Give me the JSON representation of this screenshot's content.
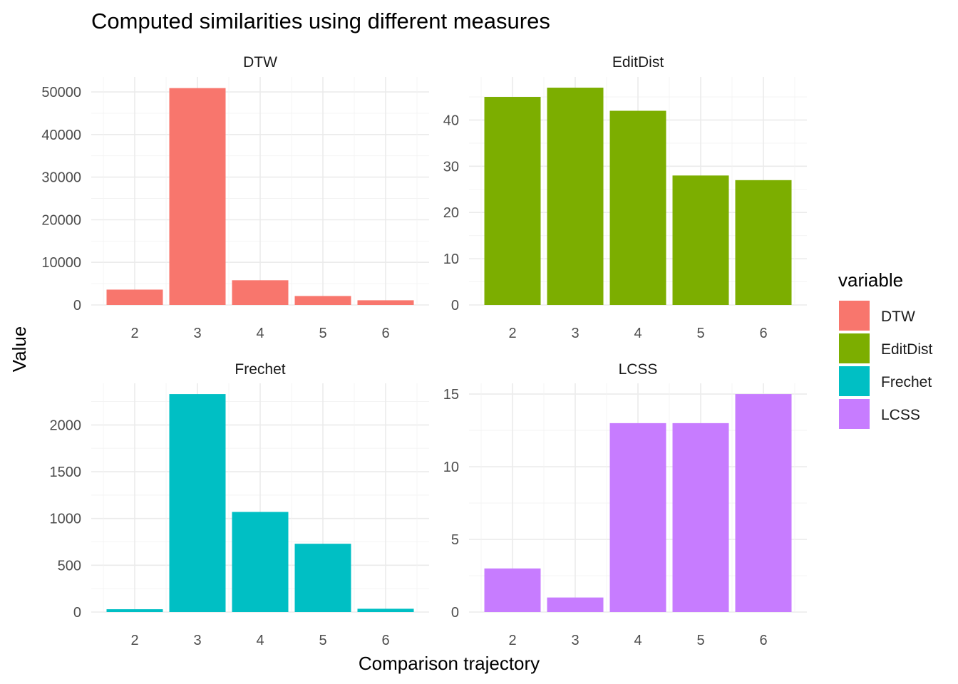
{
  "chart_data": {
    "type": "bar",
    "title": "Computed similarities using different measures",
    "xlabel": "Comparison trajectory",
    "ylabel": "Value",
    "categories": [
      "2",
      "3",
      "4",
      "5",
      "6"
    ],
    "legend": {
      "title": "variable",
      "position": "right",
      "entries": [
        {
          "name": "DTW",
          "color": "#F8766D"
        },
        {
          "name": "EditDist",
          "color": "#7CAE00"
        },
        {
          "name": "Frechet",
          "color": "#00BFC4"
        },
        {
          "name": "LCSS",
          "color": "#C77CFF"
        }
      ]
    },
    "grid": true,
    "panels": [
      {
        "name": "DTW",
        "color": "#F8766D",
        "values": [
          3600,
          50900,
          5800,
          2100,
          1100
        ],
        "ylim": [
          0,
          51000
        ],
        "yticks": [
          0,
          10000,
          20000,
          30000,
          40000,
          50000
        ],
        "ytick_labels": [
          "0",
          "10000",
          "20000",
          "30000",
          "40000",
          "50000"
        ]
      },
      {
        "name": "EditDist",
        "color": "#7CAE00",
        "values": [
          45,
          47,
          42,
          28,
          27
        ],
        "ylim": [
          0,
          47
        ],
        "yticks": [
          0,
          10,
          20,
          30,
          40
        ],
        "ytick_labels": [
          "0",
          "10",
          "20",
          "30",
          "40"
        ]
      },
      {
        "name": "Frechet",
        "color": "#00BFC4",
        "values": [
          30,
          2330,
          1070,
          730,
          35
        ],
        "ylim": [
          0,
          2330
        ],
        "yticks": [
          0,
          500,
          1000,
          1500,
          2000
        ],
        "ytick_labels": [
          "0",
          "500",
          "1000",
          "1500",
          "2000"
        ]
      },
      {
        "name": "LCSS",
        "color": "#C77CFF",
        "values": [
          3,
          1,
          13,
          13,
          15
        ],
        "ylim": [
          0,
          15
        ],
        "yticks": [
          0,
          5,
          10,
          15
        ],
        "ytick_labels": [
          "0",
          "5",
          "10",
          "15"
        ]
      }
    ]
  }
}
